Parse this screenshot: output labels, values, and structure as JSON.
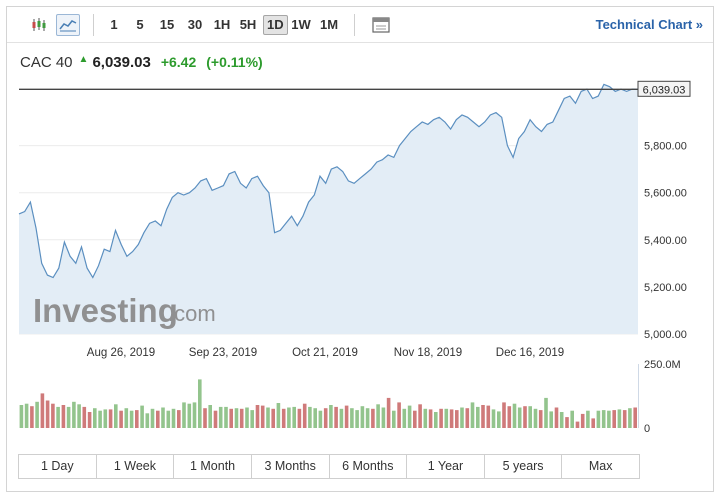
{
  "toolbar": {
    "timeframes": [
      "1",
      "5",
      "15",
      "30",
      "1H",
      "5H",
      "1D",
      "1W",
      "1M"
    ],
    "active_timeframe": "1D",
    "technical_chart_label": "Technical Chart »"
  },
  "quote": {
    "name": "CAC 40",
    "price": "6,039.03",
    "change": "+6.42",
    "change_pct": "(+0.11%)",
    "direction": "up"
  },
  "chart": {
    "last_price_label": "6,039.03",
    "watermark": {
      "brand": "Investing",
      "suffix": ".com"
    }
  },
  "ranges": [
    "1 Day",
    "1 Week",
    "1 Month",
    "3 Months",
    "6 Months",
    "1 Year",
    "5 years",
    "Max"
  ],
  "colors": {
    "line": "#5b8fc0",
    "area": "#e3edf6",
    "up": "#2d9b2d",
    "vol_up": "#93c48d",
    "vol_down": "#cf7a7a",
    "link": "#2a63a9"
  },
  "chart_data": {
    "type": "area",
    "x_tick_labels": [
      "Aug 26, 2019",
      "Sep 23, 2019",
      "Oct 21, 2019",
      "Nov 18, 2019",
      "Dec 16, 2019"
    ],
    "y_tick_labels": [
      "5,000.00",
      "5,200.00",
      "5,400.00",
      "5,600.00",
      "5,800.00"
    ],
    "ylim": [
      5000,
      6070
    ],
    "last_value": 6039.03,
    "values": [
      5510,
      5520,
      5560,
      5450,
      5300,
      5250,
      5240,
      5280,
      5390,
      5330,
      5300,
      5370,
      5280,
      5240,
      5290,
      5360,
      5350,
      5440,
      5380,
      5330,
      5350,
      5380,
      5430,
      5470,
      5480,
      5460,
      5530,
      5580,
      5600,
      5590,
      5600,
      5620,
      5650,
      5660,
      5610,
      5620,
      5630,
      5680,
      5690,
      5640,
      5620,
      5660,
      5670,
      5630,
      5600,
      5430,
      5440,
      5470,
      5500,
      5460,
      5500,
      5560,
      5590,
      5670,
      5640,
      5700,
      5710,
      5690,
      5650,
      5640,
      5660,
      5680,
      5700,
      5730,
      5740,
      5760,
      5750,
      5800,
      5830,
      5860,
      5880,
      5900,
      5890,
      5910,
      5920,
      5900,
      5870,
      5910,
      5930,
      5920,
      5900,
      5880,
      5900,
      5930,
      5940,
      5920,
      5800,
      5750,
      5830,
      5860,
      5910,
      5880,
      5860,
      5890,
      5900,
      5950,
      6000,
      6010,
      5980,
      6030,
      6040,
      6000,
      6010,
      6060,
      6050,
      6030,
      6040,
      6030,
      6040,
      6039.03
    ],
    "volume": {
      "axis_labels": [
        "250.0M",
        "0"
      ],
      "bars": [
        {
          "v": 0.36,
          "up": true
        },
        {
          "v": 0.38,
          "up": true
        },
        {
          "v": 0.34,
          "up": false
        },
        {
          "v": 0.41,
          "up": true
        },
        {
          "v": 0.54,
          "up": false
        },
        {
          "v": 0.43,
          "up": false
        },
        {
          "v": 0.38,
          "up": false
        },
        {
          "v": 0.33,
          "up": true
        },
        {
          "v": 0.36,
          "up": false
        },
        {
          "v": 0.33,
          "up": true
        },
        {
          "v": 0.41,
          "up": true
        },
        {
          "v": 0.37,
          "up": true
        },
        {
          "v": 0.33,
          "up": false
        },
        {
          "v": 0.25,
          "up": false
        },
        {
          "v": 0.31,
          "up": true
        },
        {
          "v": 0.27,
          "up": true
        },
        {
          "v": 0.29,
          "up": true
        },
        {
          "v": 0.29,
          "up": false
        },
        {
          "v": 0.37,
          "up": true
        },
        {
          "v": 0.27,
          "up": false
        },
        {
          "v": 0.31,
          "up": true
        },
        {
          "v": 0.27,
          "up": true
        },
        {
          "v": 0.28,
          "up": false
        },
        {
          "v": 0.35,
          "up": true
        },
        {
          "v": 0.23,
          "up": true
        },
        {
          "v": 0.3,
          "up": true
        },
        {
          "v": 0.27,
          "up": false
        },
        {
          "v": 0.32,
          "up": true
        },
        {
          "v": 0.27,
          "up": true
        },
        {
          "v": 0.3,
          "up": true
        },
        {
          "v": 0.28,
          "up": false
        },
        {
          "v": 0.4,
          "up": true
        },
        {
          "v": 0.38,
          "up": true
        },
        {
          "v": 0.4,
          "up": true
        },
        {
          "v": 0.76,
          "up": true
        },
        {
          "v": 0.31,
          "up": false
        },
        {
          "v": 0.36,
          "up": true
        },
        {
          "v": 0.27,
          "up": false
        },
        {
          "v": 0.33,
          "up": true
        },
        {
          "v": 0.33,
          "up": true
        },
        {
          "v": 0.3,
          "up": false
        },
        {
          "v": 0.31,
          "up": true
        },
        {
          "v": 0.3,
          "up": false
        },
        {
          "v": 0.32,
          "up": true
        },
        {
          "v": 0.28,
          "up": true
        },
        {
          "v": 0.36,
          "up": false
        },
        {
          "v": 0.35,
          "up": false
        },
        {
          "v": 0.32,
          "up": true
        },
        {
          "v": 0.3,
          "up": false
        },
        {
          "v": 0.39,
          "up": true
        },
        {
          "v": 0.3,
          "up": false
        },
        {
          "v": 0.32,
          "up": true
        },
        {
          "v": 0.33,
          "up": true
        },
        {
          "v": 0.3,
          "up": false
        },
        {
          "v": 0.38,
          "up": false
        },
        {
          "v": 0.33,
          "up": true
        },
        {
          "v": 0.31,
          "up": true
        },
        {
          "v": 0.27,
          "up": true
        },
        {
          "v": 0.31,
          "up": false
        },
        {
          "v": 0.36,
          "up": true
        },
        {
          "v": 0.33,
          "up": false
        },
        {
          "v": 0.3,
          "up": true
        },
        {
          "v": 0.35,
          "up": false
        },
        {
          "v": 0.31,
          "up": true
        },
        {
          "v": 0.28,
          "up": true
        },
        {
          "v": 0.34,
          "up": true
        },
        {
          "v": 0.31,
          "up": true
        },
        {
          "v": 0.3,
          "up": false
        },
        {
          "v": 0.37,
          "up": true
        },
        {
          "v": 0.32,
          "up": true
        },
        {
          "v": 0.47,
          "up": false
        },
        {
          "v": 0.27,
          "up": true
        },
        {
          "v": 0.4,
          "up": false
        },
        {
          "v": 0.3,
          "up": true
        },
        {
          "v": 0.35,
          "up": true
        },
        {
          "v": 0.27,
          "up": false
        },
        {
          "v": 0.37,
          "up": false
        },
        {
          "v": 0.3,
          "up": true
        },
        {
          "v": 0.29,
          "up": false
        },
        {
          "v": 0.25,
          "up": true
        },
        {
          "v": 0.3,
          "up": false
        },
        {
          "v": 0.3,
          "up": true
        },
        {
          "v": 0.29,
          "up": false
        },
        {
          "v": 0.28,
          "up": false
        },
        {
          "v": 0.32,
          "up": true
        },
        {
          "v": 0.31,
          "up": false
        },
        {
          "v": 0.4,
          "up": true
        },
        {
          "v": 0.33,
          "up": true
        },
        {
          "v": 0.36,
          "up": false
        },
        {
          "v": 0.35,
          "up": false
        },
        {
          "v": 0.29,
          "up": true
        },
        {
          "v": 0.26,
          "up": true
        },
        {
          "v": 0.4,
          "up": false
        },
        {
          "v": 0.34,
          "up": false
        },
        {
          "v": 0.38,
          "up": true
        },
        {
          "v": 0.32,
          "up": true
        },
        {
          "v": 0.34,
          "up": false
        },
        {
          "v": 0.34,
          "up": true
        },
        {
          "v": 0.3,
          "up": true
        },
        {
          "v": 0.28,
          "up": false
        },
        {
          "v": 0.47,
          "up": true
        },
        {
          "v": 0.26,
          "up": true
        },
        {
          "v": 0.32,
          "up": false
        },
        {
          "v": 0.25,
          "up": true
        },
        {
          "v": 0.17,
          "up": false
        },
        {
          "v": 0.27,
          "up": true
        },
        {
          "v": 0.1,
          "up": false
        },
        {
          "v": 0.22,
          "up": false
        },
        {
          "v": 0.27,
          "up": true
        },
        {
          "v": 0.15,
          "up": false
        },
        {
          "v": 0.27,
          "up": true
        },
        {
          "v": 0.28,
          "up": true
        },
        {
          "v": 0.27,
          "up": true
        },
        {
          "v": 0.28,
          "up": false
        },
        {
          "v": 0.29,
          "up": true
        },
        {
          "v": 0.28,
          "up": false
        },
        {
          "v": 0.31,
          "up": true
        },
        {
          "v": 0.32,
          "up": false
        }
      ]
    }
  }
}
